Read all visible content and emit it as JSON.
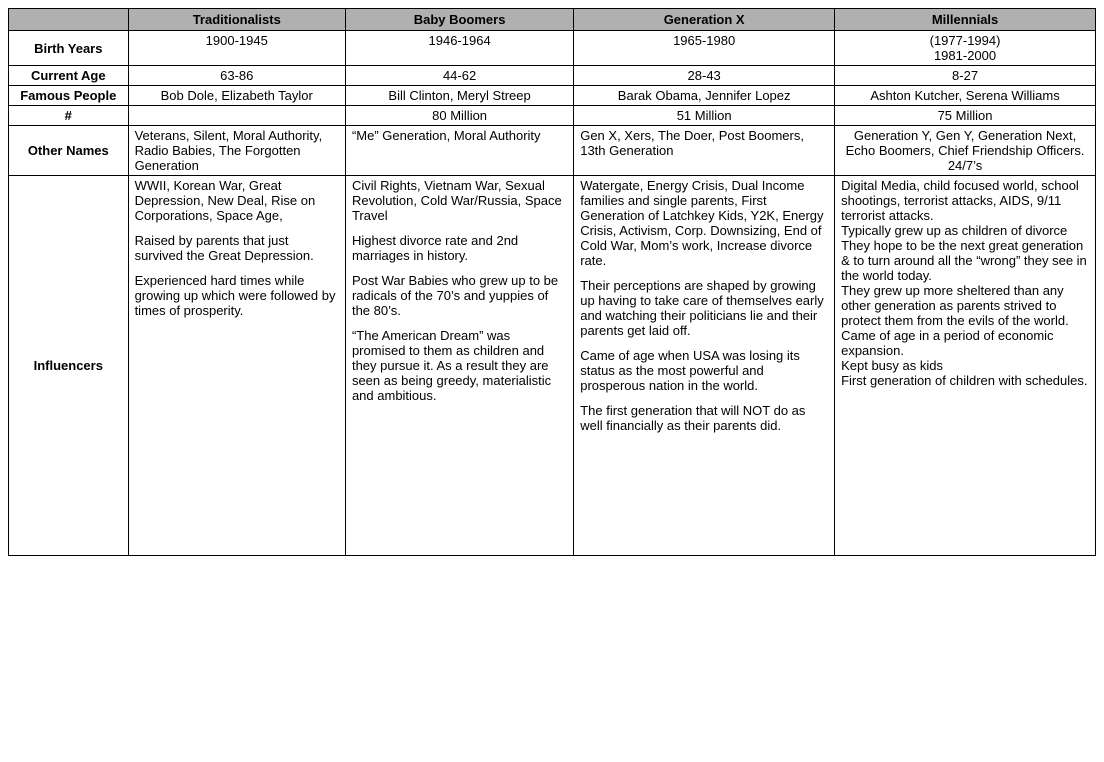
{
  "columns": {
    "c1": "Traditionalists",
    "c2": "Baby Boomers",
    "c3": "Generation X",
    "c4": "Millennials"
  },
  "rows": {
    "birth_years": {
      "label": "Birth Years",
      "c1": "1900-1945",
      "c2": "1946-1964",
      "c3": "1965-1980",
      "c4": "(1977-1994)\n1981-2000"
    },
    "current_age": {
      "label": "Current Age",
      "c1": "63-86",
      "c2": "44-62",
      "c3": "28-43",
      "c4": "8-27"
    },
    "famous_people": {
      "label": "Famous People",
      "c1": "Bob Dole, Elizabeth Taylor",
      "c2": "Bill Clinton, Meryl Streep",
      "c3": "Barak Obama, Jennifer Lopez",
      "c4": "Ashton Kutcher, Serena Williams"
    },
    "count": {
      "label": "#",
      "c1": "",
      "c2": "80 Million",
      "c3": "51 Million",
      "c4": "75 Million"
    },
    "other_names": {
      "label": "Other Names",
      "c1": "Veterans, Silent, Moral Authority, Radio Babies, The Forgotten Generation",
      "c2": "“Me” Generation, Moral Authority",
      "c3": "Gen X, Xers, The Doer, Post Boomers, 13th Generation",
      "c4": "Generation Y, Gen Y, Generation Next, Echo Boomers, Chief Friendship Officers. 24/7’s"
    },
    "influencers": {
      "label": "Influencers",
      "c1": [
        "WWII, Korean War, Great Depression, New Deal, Rise on Corporations, Space Age,",
        "Raised by parents that just survived the Great Depression.",
        "Experienced hard times while growing up which were followed by times of prosperity."
      ],
      "c2": [
        "Civil Rights, Vietnam War, Sexual Revolution, Cold War/Russia, Space Travel",
        "Highest divorce rate and 2nd marriages in history.",
        "Post War Babies who grew up to be radicals of the 70’s and yuppies of the 80’s.",
        "“The American Dream” was promised to them as children and they pursue it.  As a result they are seen as being greedy, materialistic and ambitious."
      ],
      "c3": [
        "Watergate, Energy Crisis, Dual Income families and single parents, First Generation of Latchkey Kids, Y2K, Energy Crisis, Activism, Corp. Downsizing, End of Cold War, Mom’s work, Increase divorce rate.",
        "Their perceptions are shaped by growing up having to take care of themselves early and watching their politicians lie and their parents get laid off.",
        "Came of age when USA was losing its status as the most powerful and prosperous nation in the world.",
        "The first generation that will NOT do as well financially as their parents did."
      ],
      "c4": [
        "Digital Media, child focused world,  school shootings, terrorist attacks, AIDS, 9/11 terrorist attacks.",
        "Typically grew up as children of divorce",
        "They hope to be the next great generation & to  turn around all the “wrong” they see in the world today.",
        "They grew up more sheltered than any other generation as parents strived to protect them from the evils of the world.",
        "Came of age in a period of economic expansion.",
        "Kept busy as kids",
        "First generation of children with schedules."
      ],
      "c4_spacing": "tight"
    }
  },
  "styles": {
    "header_bg": "#b0b0b0",
    "border_color": "#000000",
    "font_family": "Arial",
    "font_size_pt": 10
  }
}
